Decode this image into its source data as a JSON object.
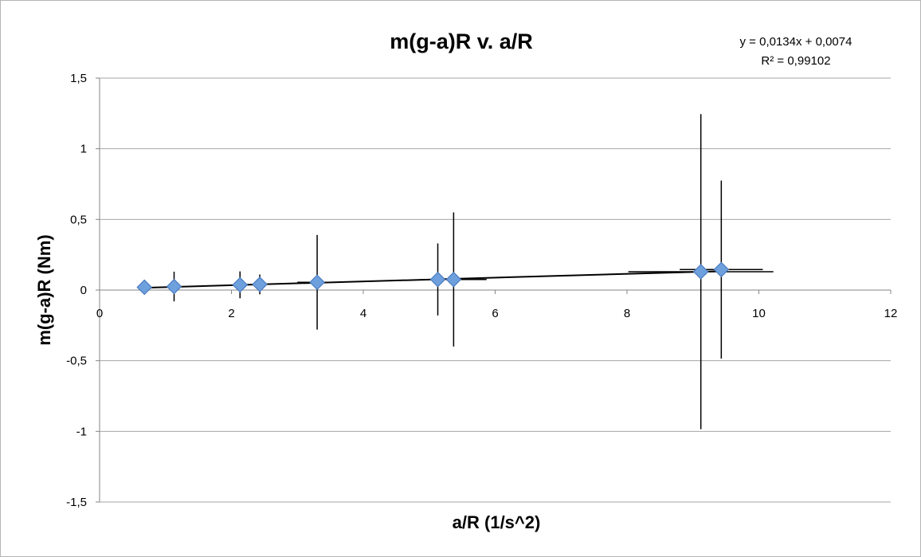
{
  "chart_data": {
    "type": "scatter",
    "title": "m(g-a)R v. a/R",
    "xlabel": "a/R (1/s^2)",
    "ylabel": "m(g-a)R (Nm)",
    "xlim": [
      0,
      12
    ],
    "ylim": [
      -1.5,
      1.5
    ],
    "x_ticks": [
      0,
      2,
      4,
      6,
      8,
      10,
      12
    ],
    "y_ticks": [
      -1.5,
      -1,
      -0.5,
      0,
      0.5,
      1,
      1.5
    ],
    "x_tick_labels": [
      "0",
      "2",
      "4",
      "6",
      "8",
      "10",
      "12"
    ],
    "y_tick_labels": [
      "-1,5",
      "-1",
      "-0,5",
      "0",
      "0,5",
      "1",
      "1,5"
    ],
    "grid": {
      "horizontal": true,
      "vertical": false
    },
    "marker": {
      "shape": "diamond",
      "fill": "#6fa0de",
      "stroke": "#4a7bbf"
    },
    "error_bar_color": "#000000",
    "gridline_color": "#a6a6a6",
    "points": [
      {
        "x": 0.68,
        "y": 0.02,
        "y_err": 0.0,
        "x_err": 0.0
      },
      {
        "x": 1.13,
        "y": 0.025,
        "y_err": 0.105,
        "x_err": 0.0
      },
      {
        "x": 2.13,
        "y": 0.037,
        "y_err": 0.095,
        "x_err": 0.0
      },
      {
        "x": 2.43,
        "y": 0.04,
        "y_err": 0.07,
        "x_err": 0.0
      },
      {
        "x": 3.3,
        "y": 0.055,
        "y_err": 0.335,
        "x_err": 0.3
      },
      {
        "x": 5.13,
        "y": 0.075,
        "y_err": 0.255,
        "x_err": 0.0
      },
      {
        "x": 5.37,
        "y": 0.075,
        "y_err": 0.475,
        "x_err": 0.5
      },
      {
        "x": 9.12,
        "y": 0.13,
        "y_err": 1.115,
        "x_err": 1.1
      },
      {
        "x": 9.43,
        "y": 0.145,
        "y_err": 0.63,
        "x_err": 0.63
      }
    ],
    "trendline": {
      "slope": 0.0134,
      "intercept": 0.0074,
      "x_range": [
        0.68,
        9.43
      ]
    },
    "annotations": {
      "equation": "y = 0,0134x + 0,0074",
      "r_squared": "R² = 0,99102"
    }
  }
}
